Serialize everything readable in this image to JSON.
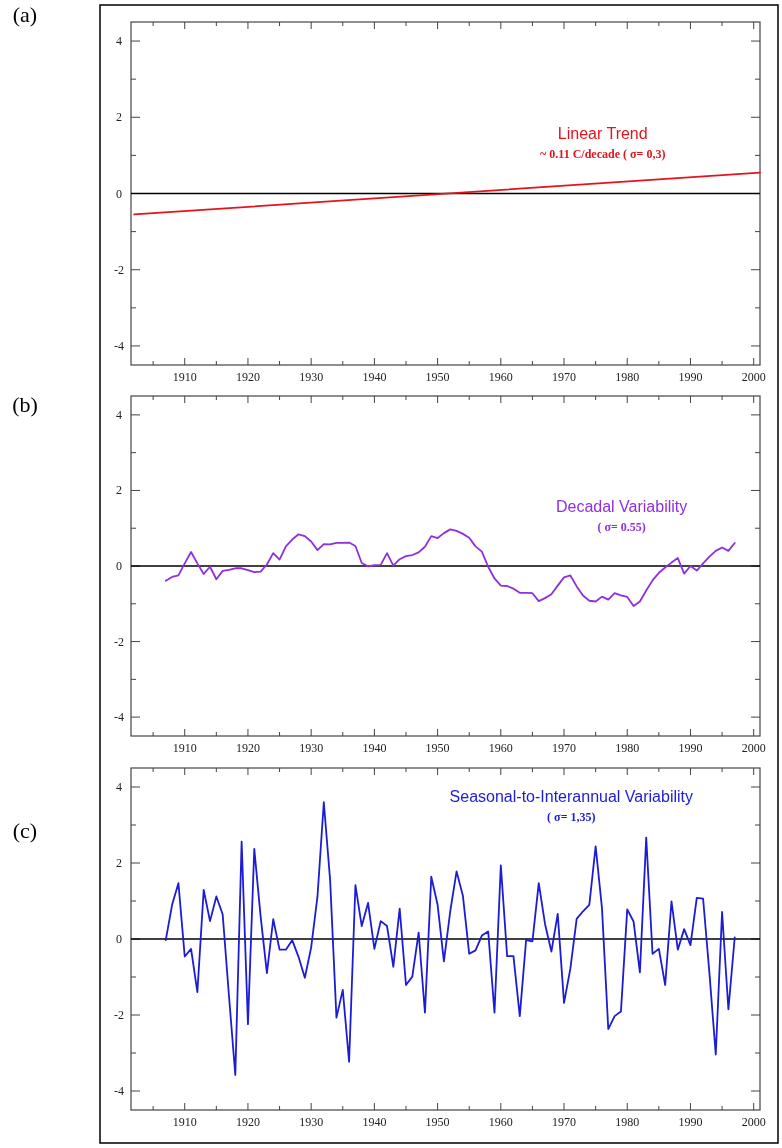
{
  "chart_data": [
    {
      "type": "line",
      "title": "(a)",
      "xlim": [
        1901.5,
        2001
      ],
      "ylim": [
        -4.5,
        4.5
      ],
      "xticks": [
        {
          "value": 1905,
          "label": null
        },
        1910,
        {
          "value": 1915,
          "label": null
        },
        1920,
        {
          "value": 1925,
          "label": null
        },
        1930,
        {
          "value": 1935,
          "label": null
        },
        1940,
        {
          "value": 1945,
          "label": null
        },
        1950,
        {
          "value": 1955,
          "label": null
        },
        1960,
        {
          "value": 1965,
          "label": null
        },
        1970,
        {
          "value": 1975,
          "label": null
        },
        1980,
        {
          "value": 1985,
          "label": null
        },
        1990,
        {
          "value": 1995,
          "label": null
        },
        2000
      ],
      "yticks": [
        -4,
        {
          "value": -3,
          "label": null
        },
        -2,
        {
          "value": -1,
          "label": null
        },
        0,
        {
          "value": 1,
          "label": null
        },
        2,
        {
          "value": 3,
          "label": null
        },
        4
      ],
      "ref_lines": [
        {
          "axis": "y",
          "value": 0,
          "color": "#000000"
        }
      ],
      "annotations": [
        "~ 0.11 C/decade ( σ= 0,3)"
      ],
      "series": [
        {
          "name": "Linear Trend",
          "color": "#e3141c",
          "x": [
            1902,
            2001
          ],
          "values": [
            -0.55,
            0.55
          ]
        }
      ]
    },
    {
      "type": "line",
      "title": "(b)",
      "xlim": [
        1901.5,
        2001
      ],
      "ylim": [
        -4.5,
        4.5
      ],
      "xticks": [
        {
          "value": 1905,
          "label": null
        },
        1910,
        {
          "value": 1915,
          "label": null
        },
        1920,
        {
          "value": 1925,
          "label": null
        },
        1930,
        {
          "value": 1935,
          "label": null
        },
        1940,
        {
          "value": 1945,
          "label": null
        },
        1950,
        {
          "value": 1955,
          "label": null
        },
        1960,
        {
          "value": 1965,
          "label": null
        },
        1970,
        {
          "value": 1975,
          "label": null
        },
        1980,
        {
          "value": 1985,
          "label": null
        },
        1990,
        {
          "value": 1995,
          "label": null
        },
        2000
      ],
      "yticks": [
        -4,
        {
          "value": -3,
          "label": null
        },
        -2,
        {
          "value": -1,
          "label": null
        },
        0,
        {
          "value": 1,
          "label": null
        },
        2,
        {
          "value": 3,
          "label": null
        },
        4
      ],
      "ref_lines": [
        {
          "axis": "y",
          "value": 0,
          "color": "#000000"
        }
      ],
      "annotations": [
        "( σ= 0.55)"
      ],
      "x": [
        1907,
        1908,
        1909,
        1910,
        1911,
        1912,
        1913,
        1914,
        1915,
        1916,
        1917,
        1918,
        1919,
        1920,
        1921,
        1922,
        1923,
        1924,
        1925,
        1926,
        1927,
        1928,
        1929,
        1930,
        1931,
        1932,
        1933,
        1934,
        1935,
        1936,
        1937,
        1938,
        1939,
        1940,
        1941,
        1942,
        1943,
        1944,
        1945,
        1946,
        1947,
        1948,
        1949,
        1950,
        1951,
        1952,
        1953,
        1954,
        1955,
        1956,
        1957,
        1958,
        1959,
        1960,
        1961,
        1962,
        1963,
        1964,
        1965,
        1966,
        1967,
        1968,
        1969,
        1970,
        1971,
        1972,
        1973,
        1974,
        1975,
        1976,
        1977,
        1978,
        1979,
        1980,
        1981,
        1982,
        1983,
        1984,
        1985,
        1986,
        1987,
        1988,
        1989,
        1990,
        1991,
        1992,
        1993,
        1994,
        1995,
        1996,
        1997
      ],
      "series": [
        {
          "name": "Decadal Variability",
          "color": "#8f2fe0",
          "values": [
            -0.39,
            -0.29,
            -0.25,
            0.07,
            0.37,
            0.07,
            -0.21,
            -0.02,
            -0.35,
            -0.13,
            -0.1,
            -0.06,
            -0.06,
            -0.11,
            -0.16,
            -0.15,
            0.04,
            0.34,
            0.17,
            0.52,
            0.7,
            0.84,
            0.79,
            0.65,
            0.42,
            0.58,
            0.57,
            0.61,
            0.61,
            0.62,
            0.53,
            0.08,
            -0.01,
            0.02,
            0.03,
            0.34,
            0.01,
            0.18,
            0.26,
            0.29,
            0.36,
            0.51,
            0.79,
            0.74,
            0.87,
            0.97,
            0.93,
            0.85,
            0.75,
            0.52,
            0.38,
            -0.02,
            -0.33,
            -0.52,
            -0.53,
            -0.6,
            -0.71,
            -0.71,
            -0.72,
            -0.93,
            -0.85,
            -0.75,
            -0.52,
            -0.3,
            -0.25,
            -0.54,
            -0.78,
            -0.92,
            -0.94,
            -0.81,
            -0.89,
            -0.72,
            -0.78,
            -0.82,
            -1.06,
            -0.94,
            -0.65,
            -0.38,
            -0.18,
            -0.04,
            0.09,
            0.21,
            -0.2,
            0,
            -0.12,
            0.07,
            0.25,
            0.4,
            0.49,
            0.4,
            0.61
          ]
        }
      ]
    },
    {
      "type": "line",
      "title": "(c)",
      "xlim": [
        1901.5,
        2001
      ],
      "ylim": [
        -4.5,
        4.5
      ],
      "xticks": [
        {
          "value": 1905,
          "label": null
        },
        1910,
        {
          "value": 1915,
          "label": null
        },
        1920,
        {
          "value": 1925,
          "label": null
        },
        1930,
        {
          "value": 1935,
          "label": null
        },
        1940,
        {
          "value": 1945,
          "label": null
        },
        1950,
        {
          "value": 1955,
          "label": null
        },
        1960,
        {
          "value": 1965,
          "label": null
        },
        1970,
        {
          "value": 1975,
          "label": null
        },
        1980,
        {
          "value": 1985,
          "label": null
        },
        1990,
        {
          "value": 1995,
          "label": null
        },
        2000
      ],
      "yticks": [
        -4,
        {
          "value": -3,
          "label": null
        },
        -2,
        {
          "value": -1,
          "label": null
        },
        0,
        {
          "value": 1,
          "label": null
        },
        2,
        {
          "value": 3,
          "label": null
        },
        4
      ],
      "ref_lines": [
        {
          "axis": "y",
          "value": 0,
          "color": "#000000"
        }
      ],
      "annotations": [
        "( σ= 1,35)"
      ],
      "x": [
        1907,
        1908,
        1909,
        1910,
        1911,
        1912,
        1913,
        1914,
        1915,
        1916,
        1917,
        1918,
        1919,
        1920,
        1921,
        1922,
        1923,
        1924,
        1925,
        1926,
        1927,
        1928,
        1929,
        1930,
        1931,
        1932,
        1933,
        1934,
        1935,
        1936,
        1937,
        1938,
        1939,
        1940,
        1941,
        1942,
        1943,
        1944,
        1945,
        1946,
        1947,
        1948,
        1949,
        1950,
        1951,
        1952,
        1953,
        1954,
        1955,
        1956,
        1957,
        1958,
        1959,
        1960,
        1961,
        1962,
        1963,
        1964,
        1965,
        1966,
        1967,
        1968,
        1969,
        1970,
        1971,
        1972,
        1973,
        1974,
        1975,
        1976,
        1977,
        1978,
        1979,
        1980,
        1981,
        1982,
        1983,
        1984,
        1985,
        1986,
        1987,
        1988,
        1989,
        1990,
        1991,
        1992,
        1993,
        1994,
        1995,
        1996,
        1997
      ],
      "series": [
        {
          "name": "Seasonal-to-Interannual Variability",
          "color": "#1c1cd6",
          "values": [
            -0.03,
            0.9,
            1.47,
            -0.46,
            -0.26,
            -1.4,
            1.29,
            0.47,
            1.12,
            0.65,
            -1.5,
            -3.58,
            2.56,
            -2.24,
            2.37,
            0.6,
            -0.9,
            0.52,
            -0.28,
            -0.28,
            -0.03,
            -0.47,
            -1.02,
            -0.22,
            1.12,
            3.6,
            1.55,
            -2.07,
            -1.34,
            -3.23,
            1.42,
            0.34,
            0.95,
            -0.26,
            0.47,
            0.34,
            -0.73,
            0.8,
            -1.21,
            -0.99,
            0.17,
            -1.94,
            1.64,
            0.9,
            -0.59,
            0.73,
            1.78,
            1.14,
            -0.39,
            -0.3,
            0.09,
            0.2,
            -1.94,
            1.94,
            -0.45,
            -0.45,
            -2.03,
            -0.03,
            -0.06,
            1.47,
            0.39,
            -0.33,
            0.66,
            -1.68,
            -0.78,
            0.53,
            0.73,
            0.9,
            2.44,
            0.82,
            -2.37,
            -2.03,
            -1.91,
            0.78,
            0.46,
            -0.88,
            2.67,
            -0.39,
            -0.26,
            -1.21,
            0.99,
            -0.28,
            0.26,
            -0.16,
            1.08,
            1.06,
            -0.9,
            -3.04,
            0.71,
            -1.85,
            0.04
          ]
        }
      ]
    }
  ]
}
